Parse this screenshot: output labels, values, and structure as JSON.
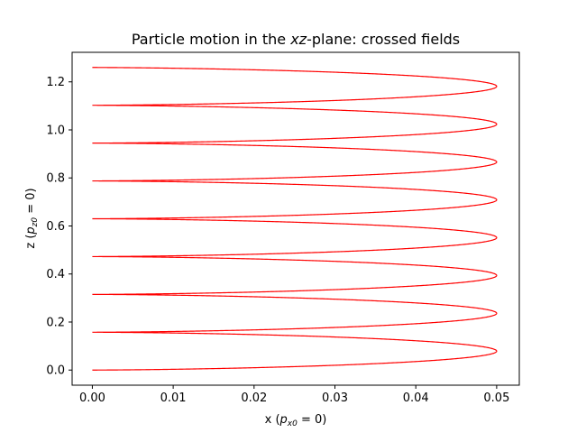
{
  "chart_data": {
    "type": "line",
    "title": "Particle motion in the xz-plane: crossed fields",
    "title_parts": {
      "before": "Particle motion in the ",
      "italic": "xz",
      "after": "-plane: crossed fields"
    },
    "xlabel": "x (p_x0 = 0)",
    "xlabel_parts": {
      "before": "x (",
      "sym": "p",
      "sub": "x0",
      "after": " = 0)"
    },
    "ylabel": "z (p_z0 = 0)",
    "ylabel_parts": {
      "before": "z (",
      "sym": "p",
      "sub": "z0",
      "after": " = 0)"
    },
    "xlim": [
      -0.0025,
      0.0528
    ],
    "ylim": [
      -0.063,
      1.323
    ],
    "xticks": [
      0.0,
      0.01,
      0.02,
      0.03,
      0.04,
      0.05
    ],
    "xtick_labels": [
      "0.00",
      "0.01",
      "0.02",
      "0.03",
      "0.04",
      "0.05"
    ],
    "yticks": [
      0.0,
      0.2,
      0.4,
      0.6,
      0.8,
      1.0,
      1.2
    ],
    "ytick_labels": [
      "0.0",
      "0.2",
      "0.4",
      "0.6",
      "0.8",
      "1.0",
      "1.2"
    ],
    "grid": false,
    "legend": "none",
    "series": [
      {
        "color": "#ff0000",
        "curve": "cycloid",
        "x_amplitude": 0.05,
        "z_period": 0.1575,
        "t_end": 50.38
      }
    ]
  }
}
